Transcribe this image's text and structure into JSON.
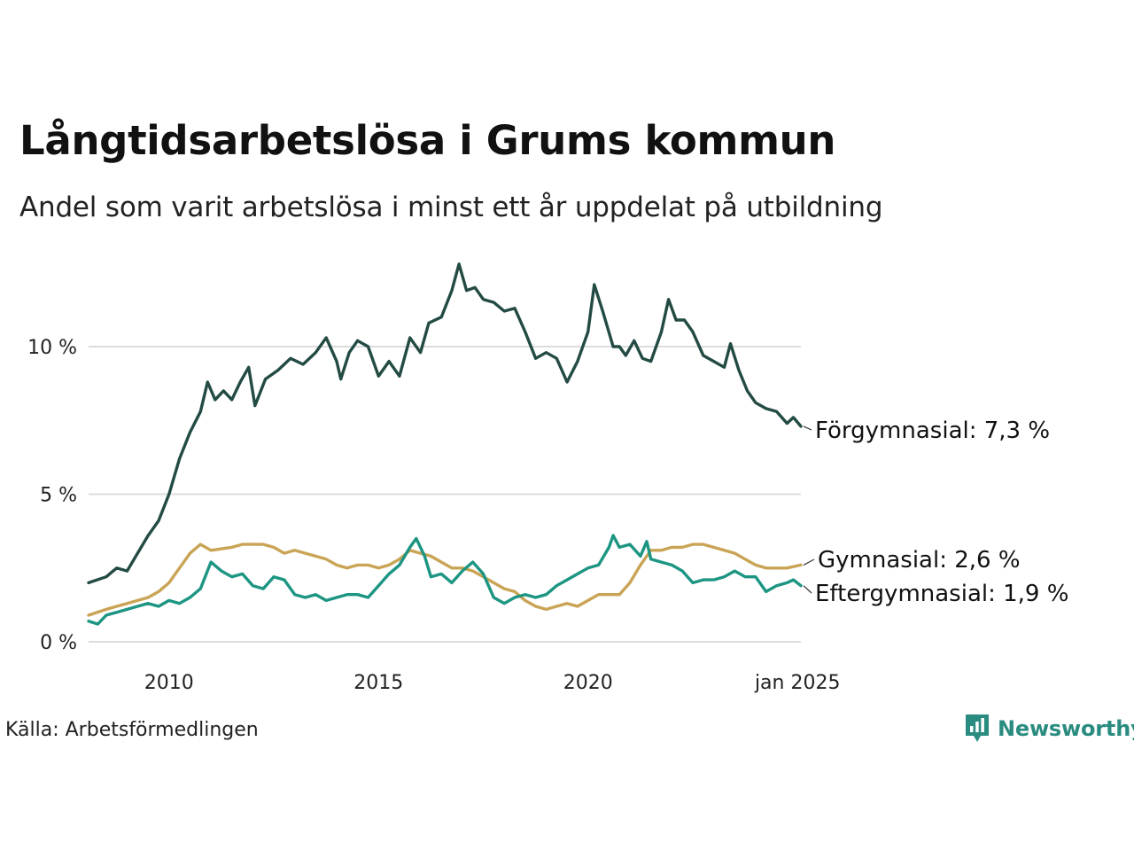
{
  "header": {
    "title": "Långtidsarbetslösa i Grums kommun",
    "subtitle": "Andel som varit arbetslösa i minst ett år uppdelat på utbildning"
  },
  "footer": {
    "source": "Källa: Arbetsförmedlingen",
    "brand": "Newsworthy"
  },
  "colors": {
    "forgymnasial": "#234b44",
    "gymnasial": "#c9a455",
    "eftergymnasial": "#1c9582",
    "grid": "#dcdcdc",
    "brand": "#2a8c80"
  },
  "chart_data": {
    "type": "line",
    "title": "Långtidsarbetslösa i Grums kommun",
    "subtitle": "Andel som varit arbetslösa i minst ett år uppdelat på utbildning",
    "xlabel": "",
    "ylabel": "",
    "x_start": "2008-02",
    "x_end": "jan 2025",
    "xlim": [
      2008.08,
      2025.08
    ],
    "ylim": [
      0,
      12.9
    ],
    "y_ticks": [
      {
        "value": 0,
        "label": "0 %"
      },
      {
        "value": 5,
        "label": "5 %"
      },
      {
        "value": 10,
        "label": "10 %"
      }
    ],
    "x_ticks": [
      {
        "value": 2010,
        "label": "2010"
      },
      {
        "value": 2015,
        "label": "2015"
      },
      {
        "value": 2020,
        "label": "2020"
      },
      {
        "value": 2025,
        "label": "jan 2025"
      }
    ],
    "grid": true,
    "series": [
      {
        "name": "Förgymnasial",
        "label": "Förgymnasial: 7,3 %",
        "color_key": "forgymnasial",
        "points": [
          [
            2008.08,
            2.0
          ],
          [
            2008.5,
            2.2
          ],
          [
            2008.75,
            2.5
          ],
          [
            2009.0,
            2.4
          ],
          [
            2009.25,
            3.0
          ],
          [
            2009.5,
            3.6
          ],
          [
            2009.75,
            4.1
          ],
          [
            2010.0,
            5.0
          ],
          [
            2010.25,
            6.2
          ],
          [
            2010.5,
            7.1
          ],
          [
            2010.75,
            7.8
          ],
          [
            2010.92,
            8.8
          ],
          [
            2011.1,
            8.2
          ],
          [
            2011.3,
            8.5
          ],
          [
            2011.5,
            8.2
          ],
          [
            2011.7,
            8.8
          ],
          [
            2011.9,
            9.3
          ],
          [
            2012.05,
            8.0
          ],
          [
            2012.3,
            8.9
          ],
          [
            2012.6,
            9.2
          ],
          [
            2012.9,
            9.6
          ],
          [
            2013.2,
            9.4
          ],
          [
            2013.5,
            9.8
          ],
          [
            2013.75,
            10.3
          ],
          [
            2014.0,
            9.5
          ],
          [
            2014.1,
            8.9
          ],
          [
            2014.3,
            9.8
          ],
          [
            2014.5,
            10.2
          ],
          [
            2014.75,
            10.0
          ],
          [
            2015.0,
            9.0
          ],
          [
            2015.25,
            9.5
          ],
          [
            2015.5,
            9.0
          ],
          [
            2015.75,
            10.3
          ],
          [
            2016.0,
            9.8
          ],
          [
            2016.2,
            10.8
          ],
          [
            2016.5,
            11.0
          ],
          [
            2016.75,
            11.9
          ],
          [
            2016.92,
            12.8
          ],
          [
            2017.1,
            11.9
          ],
          [
            2017.3,
            12.0
          ],
          [
            2017.5,
            11.6
          ],
          [
            2017.75,
            11.5
          ],
          [
            2018.0,
            11.2
          ],
          [
            2018.25,
            11.3
          ],
          [
            2018.5,
            10.5
          ],
          [
            2018.75,
            9.6
          ],
          [
            2019.0,
            9.8
          ],
          [
            2019.25,
            9.6
          ],
          [
            2019.5,
            8.8
          ],
          [
            2019.75,
            9.5
          ],
          [
            2020.0,
            10.5
          ],
          [
            2020.15,
            12.1
          ],
          [
            2020.35,
            11.2
          ],
          [
            2020.6,
            10.0
          ],
          [
            2020.75,
            10.0
          ],
          [
            2020.9,
            9.7
          ],
          [
            2021.1,
            10.2
          ],
          [
            2021.3,
            9.6
          ],
          [
            2021.5,
            9.5
          ],
          [
            2021.75,
            10.5
          ],
          [
            2021.92,
            11.6
          ],
          [
            2022.1,
            10.9
          ],
          [
            2022.3,
            10.9
          ],
          [
            2022.5,
            10.5
          ],
          [
            2022.75,
            9.7
          ],
          [
            2023.0,
            9.5
          ],
          [
            2023.25,
            9.3
          ],
          [
            2023.4,
            10.1
          ],
          [
            2023.6,
            9.2
          ],
          [
            2023.8,
            8.5
          ],
          [
            2024.0,
            8.1
          ],
          [
            2024.25,
            7.9
          ],
          [
            2024.5,
            7.8
          ],
          [
            2024.75,
            7.4
          ],
          [
            2024.9,
            7.6
          ],
          [
            2025.08,
            7.3
          ]
        ]
      },
      {
        "name": "Gymnasial",
        "label": "Gymnasial: 2,6 %",
        "color_key": "gymnasial",
        "points": [
          [
            2008.08,
            0.9
          ],
          [
            2008.5,
            1.1
          ],
          [
            2008.75,
            1.2
          ],
          [
            2009.0,
            1.3
          ],
          [
            2009.25,
            1.4
          ],
          [
            2009.5,
            1.5
          ],
          [
            2009.75,
            1.7
          ],
          [
            2010.0,
            2.0
          ],
          [
            2010.25,
            2.5
          ],
          [
            2010.5,
            3.0
          ],
          [
            2010.75,
            3.3
          ],
          [
            2011.0,
            3.1
          ],
          [
            2011.5,
            3.2
          ],
          [
            2011.75,
            3.3
          ],
          [
            2012.0,
            3.3
          ],
          [
            2012.25,
            3.3
          ],
          [
            2012.5,
            3.2
          ],
          [
            2012.75,
            3.0
          ],
          [
            2013.0,
            3.1
          ],
          [
            2013.25,
            3.0
          ],
          [
            2013.5,
            2.9
          ],
          [
            2013.75,
            2.8
          ],
          [
            2014.0,
            2.6
          ],
          [
            2014.25,
            2.5
          ],
          [
            2014.5,
            2.6
          ],
          [
            2014.75,
            2.6
          ],
          [
            2015.0,
            2.5
          ],
          [
            2015.25,
            2.6
          ],
          [
            2015.5,
            2.8
          ],
          [
            2015.75,
            3.1
          ],
          [
            2016.0,
            3.0
          ],
          [
            2016.25,
            2.9
          ],
          [
            2016.5,
            2.7
          ],
          [
            2016.75,
            2.5
          ],
          [
            2017.0,
            2.5
          ],
          [
            2017.25,
            2.4
          ],
          [
            2017.5,
            2.2
          ],
          [
            2017.75,
            2.0
          ],
          [
            2018.0,
            1.8
          ],
          [
            2018.25,
            1.7
          ],
          [
            2018.5,
            1.4
          ],
          [
            2018.75,
            1.2
          ],
          [
            2019.0,
            1.1
          ],
          [
            2019.25,
            1.2
          ],
          [
            2019.5,
            1.3
          ],
          [
            2019.75,
            1.2
          ],
          [
            2020.0,
            1.4
          ],
          [
            2020.25,
            1.6
          ],
          [
            2020.5,
            1.6
          ],
          [
            2020.75,
            1.6
          ],
          [
            2021.0,
            2.0
          ],
          [
            2021.25,
            2.6
          ],
          [
            2021.5,
            3.1
          ],
          [
            2021.75,
            3.1
          ],
          [
            2022.0,
            3.2
          ],
          [
            2022.25,
            3.2
          ],
          [
            2022.5,
            3.3
          ],
          [
            2022.75,
            3.3
          ],
          [
            2023.0,
            3.2
          ],
          [
            2023.25,
            3.1
          ],
          [
            2023.5,
            3.0
          ],
          [
            2023.75,
            2.8
          ],
          [
            2024.0,
            2.6
          ],
          [
            2024.25,
            2.5
          ],
          [
            2024.5,
            2.5
          ],
          [
            2024.75,
            2.5
          ],
          [
            2025.08,
            2.6
          ]
        ]
      },
      {
        "name": "Eftergymnasial",
        "label": "Eftergymnasial: 1,9 %",
        "color_key": "eftergymnasial",
        "points": [
          [
            2008.08,
            0.7
          ],
          [
            2008.3,
            0.6
          ],
          [
            2008.5,
            0.9
          ],
          [
            2008.75,
            1.0
          ],
          [
            2009.0,
            1.1
          ],
          [
            2009.25,
            1.2
          ],
          [
            2009.5,
            1.3
          ],
          [
            2009.75,
            1.2
          ],
          [
            2010.0,
            1.4
          ],
          [
            2010.25,
            1.3
          ],
          [
            2010.5,
            1.5
          ],
          [
            2010.75,
            1.8
          ],
          [
            2011.0,
            2.7
          ],
          [
            2011.25,
            2.4
          ],
          [
            2011.5,
            2.2
          ],
          [
            2011.75,
            2.3
          ],
          [
            2012.0,
            1.9
          ],
          [
            2012.25,
            1.8
          ],
          [
            2012.5,
            2.2
          ],
          [
            2012.75,
            2.1
          ],
          [
            2013.0,
            1.6
          ],
          [
            2013.25,
            1.5
          ],
          [
            2013.5,
            1.6
          ],
          [
            2013.75,
            1.4
          ],
          [
            2014.0,
            1.5
          ],
          [
            2014.25,
            1.6
          ],
          [
            2014.5,
            1.6
          ],
          [
            2014.75,
            1.5
          ],
          [
            2015.0,
            1.9
          ],
          [
            2015.25,
            2.3
          ],
          [
            2015.5,
            2.6
          ],
          [
            2015.75,
            3.2
          ],
          [
            2015.9,
            3.5
          ],
          [
            2016.1,
            2.9
          ],
          [
            2016.25,
            2.2
          ],
          [
            2016.5,
            2.3
          ],
          [
            2016.75,
            2.0
          ],
          [
            2017.0,
            2.4
          ],
          [
            2017.25,
            2.7
          ],
          [
            2017.5,
            2.3
          ],
          [
            2017.75,
            1.5
          ],
          [
            2018.0,
            1.3
          ],
          [
            2018.25,
            1.5
          ],
          [
            2018.5,
            1.6
          ],
          [
            2018.75,
            1.5
          ],
          [
            2019.0,
            1.6
          ],
          [
            2019.25,
            1.9
          ],
          [
            2019.5,
            2.1
          ],
          [
            2019.75,
            2.3
          ],
          [
            2020.0,
            2.5
          ],
          [
            2020.25,
            2.6
          ],
          [
            2020.5,
            3.2
          ],
          [
            2020.6,
            3.6
          ],
          [
            2020.75,
            3.2
          ],
          [
            2021.0,
            3.3
          ],
          [
            2021.25,
            2.9
          ],
          [
            2021.4,
            3.4
          ],
          [
            2021.5,
            2.8
          ],
          [
            2021.75,
            2.7
          ],
          [
            2022.0,
            2.6
          ],
          [
            2022.25,
            2.4
          ],
          [
            2022.5,
            2.0
          ],
          [
            2022.75,
            2.1
          ],
          [
            2023.0,
            2.1
          ],
          [
            2023.25,
            2.2
          ],
          [
            2023.5,
            2.4
          ],
          [
            2023.75,
            2.2
          ],
          [
            2024.0,
            2.2
          ],
          [
            2024.25,
            1.7
          ],
          [
            2024.5,
            1.9
          ],
          [
            2024.75,
            2.0
          ],
          [
            2024.9,
            2.1
          ],
          [
            2025.08,
            1.9
          ]
        ]
      }
    ]
  }
}
